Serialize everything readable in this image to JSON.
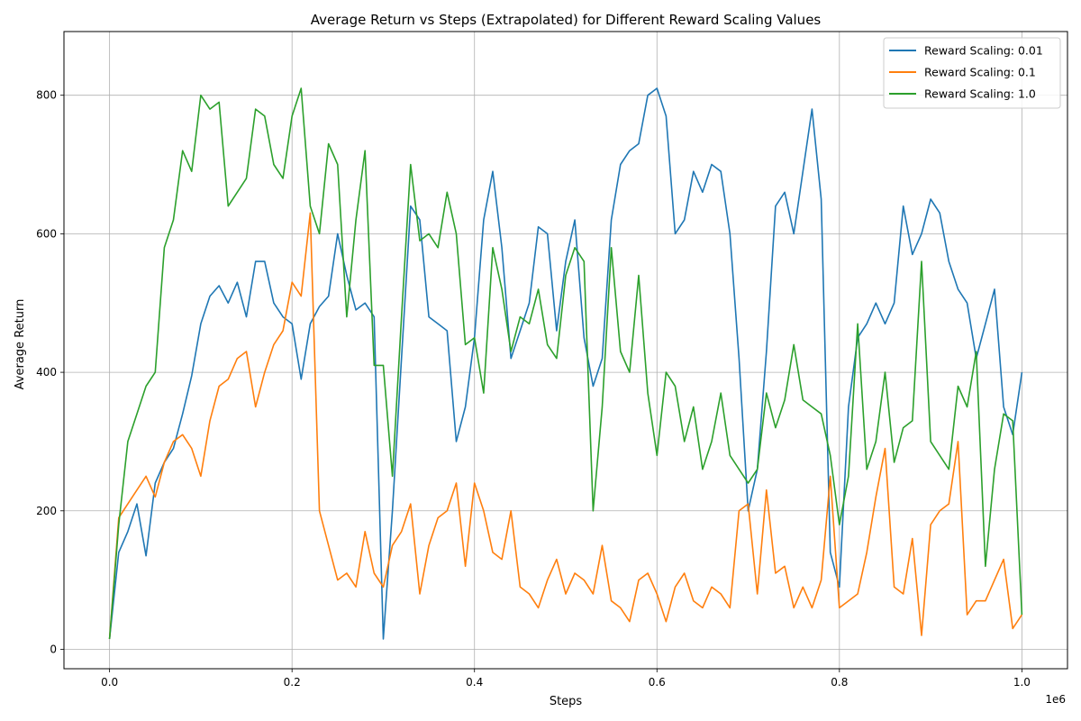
{
  "chart_data": {
    "type": "line",
    "title": "Average Return vs Steps (Extrapolated) for Different Reward Scaling Values",
    "xlabel": "Steps",
    "ylabel": "Average Return",
    "x_offset_label": "1e6",
    "xlim": [
      -50000,
      1050000
    ],
    "ylim": [
      -28,
      892
    ],
    "x_ticks": [
      0,
      200000,
      400000,
      600000,
      800000,
      1000000
    ],
    "x_tick_labels": [
      "0.0",
      "0.2",
      "0.4",
      "0.6",
      "0.8",
      "1.0"
    ],
    "y_ticks": [
      0,
      200,
      400,
      600,
      800
    ],
    "y_tick_labels": [
      "0",
      "200",
      "400",
      "600",
      "800"
    ],
    "grid": true,
    "legend_position": "top-right",
    "series": [
      {
        "name": "Reward Scaling: 0.01",
        "color": "#1f77b4",
        "x": [
          0,
          10000,
          20000,
          30000,
          40000,
          50000,
          60000,
          70000,
          80000,
          90000,
          100000,
          110000,
          120000,
          130000,
          140000,
          150000,
          160000,
          170000,
          180000,
          190000,
          200000,
          210000,
          220000,
          230000,
          240000,
          250000,
          260000,
          270000,
          280000,
          290000,
          300000,
          310000,
          320000,
          330000,
          340000,
          350000,
          360000,
          370000,
          380000,
          390000,
          400000,
          410000,
          420000,
          430000,
          440000,
          450000,
          460000,
          470000,
          480000,
          490000,
          500000,
          510000,
          520000,
          530000,
          540000,
          550000,
          560000,
          570000,
          580000,
          590000,
          600000,
          610000,
          620000,
          630000,
          640000,
          650000,
          660000,
          670000,
          680000,
          690000,
          700000,
          710000,
          720000,
          730000,
          740000,
          750000,
          760000,
          770000,
          780000,
          790000,
          800000,
          810000,
          820000,
          830000,
          840000,
          850000,
          860000,
          870000,
          880000,
          890000,
          900000,
          910000,
          920000,
          930000,
          940000,
          950000,
          960000,
          970000,
          980000,
          990000,
          1000000
        ],
        "y": [
          15,
          140,
          170,
          210,
          135,
          240,
          270,
          290,
          340,
          395,
          470,
          510,
          525,
          500,
          530,
          480,
          560,
          560,
          500,
          480,
          470,
          390,
          470,
          495,
          510,
          600,
          540,
          490,
          500,
          480,
          15,
          200,
          420,
          640,
          620,
          480,
          470,
          460,
          300,
          350,
          450,
          620,
          690,
          580,
          420,
          460,
          500,
          610,
          600,
          460,
          560,
          620,
          450,
          380,
          420,
          620,
          700,
          720,
          730,
          800,
          810,
          770,
          600,
          620,
          690,
          660,
          700,
          690,
          600,
          420,
          200,
          260,
          430,
          640,
          660,
          600,
          690,
          780,
          650,
          140,
          90,
          350,
          450,
          470,
          500,
          470,
          500,
          640,
          570,
          600,
          650,
          630,
          560,
          520,
          500,
          420,
          470,
          520,
          350,
          310,
          400
        ]
      },
      {
        "name": "Reward Scaling: 0.1",
        "color": "#ff7f0e",
        "x": [
          0,
          10000,
          20000,
          30000,
          40000,
          50000,
          60000,
          70000,
          80000,
          90000,
          100000,
          110000,
          120000,
          130000,
          140000,
          150000,
          160000,
          170000,
          180000,
          190000,
          200000,
          210000,
          220000,
          230000,
          240000,
          250000,
          260000,
          270000,
          280000,
          290000,
          300000,
          310000,
          320000,
          330000,
          340000,
          350000,
          360000,
          370000,
          380000,
          390000,
          400000,
          410000,
          420000,
          430000,
          440000,
          450000,
          460000,
          470000,
          480000,
          490000,
          500000,
          510000,
          520000,
          530000,
          540000,
          550000,
          560000,
          570000,
          580000,
          590000,
          600000,
          610000,
          620000,
          630000,
          640000,
          650000,
          660000,
          670000,
          680000,
          690000,
          700000,
          710000,
          720000,
          730000,
          740000,
          750000,
          760000,
          770000,
          780000,
          790000,
          800000,
          810000,
          820000,
          830000,
          840000,
          850000,
          860000,
          870000,
          880000,
          890000,
          900000,
          910000,
          920000,
          930000,
          940000,
          950000,
          960000,
          970000,
          980000,
          990000,
          1000000
        ],
        "y": [
          15,
          190,
          210,
          230,
          250,
          220,
          270,
          300,
          310,
          290,
          250,
          330,
          380,
          390,
          420,
          430,
          350,
          400,
          440,
          460,
          530,
          510,
          630,
          200,
          150,
          100,
          110,
          90,
          170,
          110,
          90,
          150,
          170,
          210,
          80,
          150,
          190,
          200,
          240,
          120,
          240,
          200,
          140,
          130,
          200,
          90,
          80,
          60,
          100,
          130,
          80,
          110,
          100,
          80,
          150,
          70,
          60,
          40,
          100,
          110,
          80,
          40,
          90,
          110,
          70,
          60,
          90,
          80,
          60,
          200,
          210,
          80,
          230,
          110,
          120,
          60,
          90,
          60,
          100,
          250,
          60,
          70,
          80,
          140,
          220,
          290,
          90,
          80,
          160,
          20,
          180,
          200,
          210,
          300,
          50,
          70,
          70,
          100,
          130,
          30,
          50
        ]
      },
      {
        "name": "Reward Scaling: 1.0",
        "color": "#2ca02c",
        "x": [
          0,
          10000,
          20000,
          30000,
          40000,
          50000,
          60000,
          70000,
          80000,
          90000,
          100000,
          110000,
          120000,
          130000,
          140000,
          150000,
          160000,
          170000,
          180000,
          190000,
          200000,
          210000,
          220000,
          230000,
          240000,
          250000,
          260000,
          270000,
          280000,
          290000,
          300000,
          310000,
          320000,
          330000,
          340000,
          350000,
          360000,
          370000,
          380000,
          390000,
          400000,
          410000,
          420000,
          430000,
          440000,
          450000,
          460000,
          470000,
          480000,
          490000,
          500000,
          510000,
          520000,
          530000,
          540000,
          550000,
          560000,
          570000,
          580000,
          590000,
          600000,
          610000,
          620000,
          630000,
          640000,
          650000,
          660000,
          670000,
          680000,
          690000,
          700000,
          710000,
          720000,
          730000,
          740000,
          750000,
          760000,
          770000,
          780000,
          790000,
          800000,
          810000,
          820000,
          830000,
          840000,
          850000,
          860000,
          870000,
          880000,
          890000,
          900000,
          910000,
          920000,
          930000,
          940000,
          950000,
          960000,
          970000,
          980000,
          990000,
          1000000
        ],
        "y": [
          15,
          180,
          300,
          340,
          380,
          400,
          580,
          620,
          720,
          690,
          800,
          780,
          790,
          640,
          660,
          680,
          780,
          770,
          700,
          680,
          770,
          810,
          640,
          600,
          730,
          700,
          480,
          620,
          720,
          410,
          410,
          250,
          480,
          700,
          590,
          600,
          580,
          660,
          600,
          440,
          450,
          370,
          580,
          520,
          430,
          480,
          470,
          520,
          440,
          420,
          540,
          580,
          560,
          200,
          350,
          580,
          430,
          400,
          540,
          370,
          280,
          400,
          380,
          300,
          350,
          260,
          300,
          370,
          280,
          260,
          240,
          260,
          370,
          320,
          360,
          440,
          360,
          350,
          340,
          280,
          180,
          250,
          470,
          260,
          300,
          400,
          270,
          320,
          330,
          560,
          300,
          280,
          260,
          380,
          350,
          430,
          120,
          260,
          340,
          330,
          50
        ]
      }
    ]
  }
}
